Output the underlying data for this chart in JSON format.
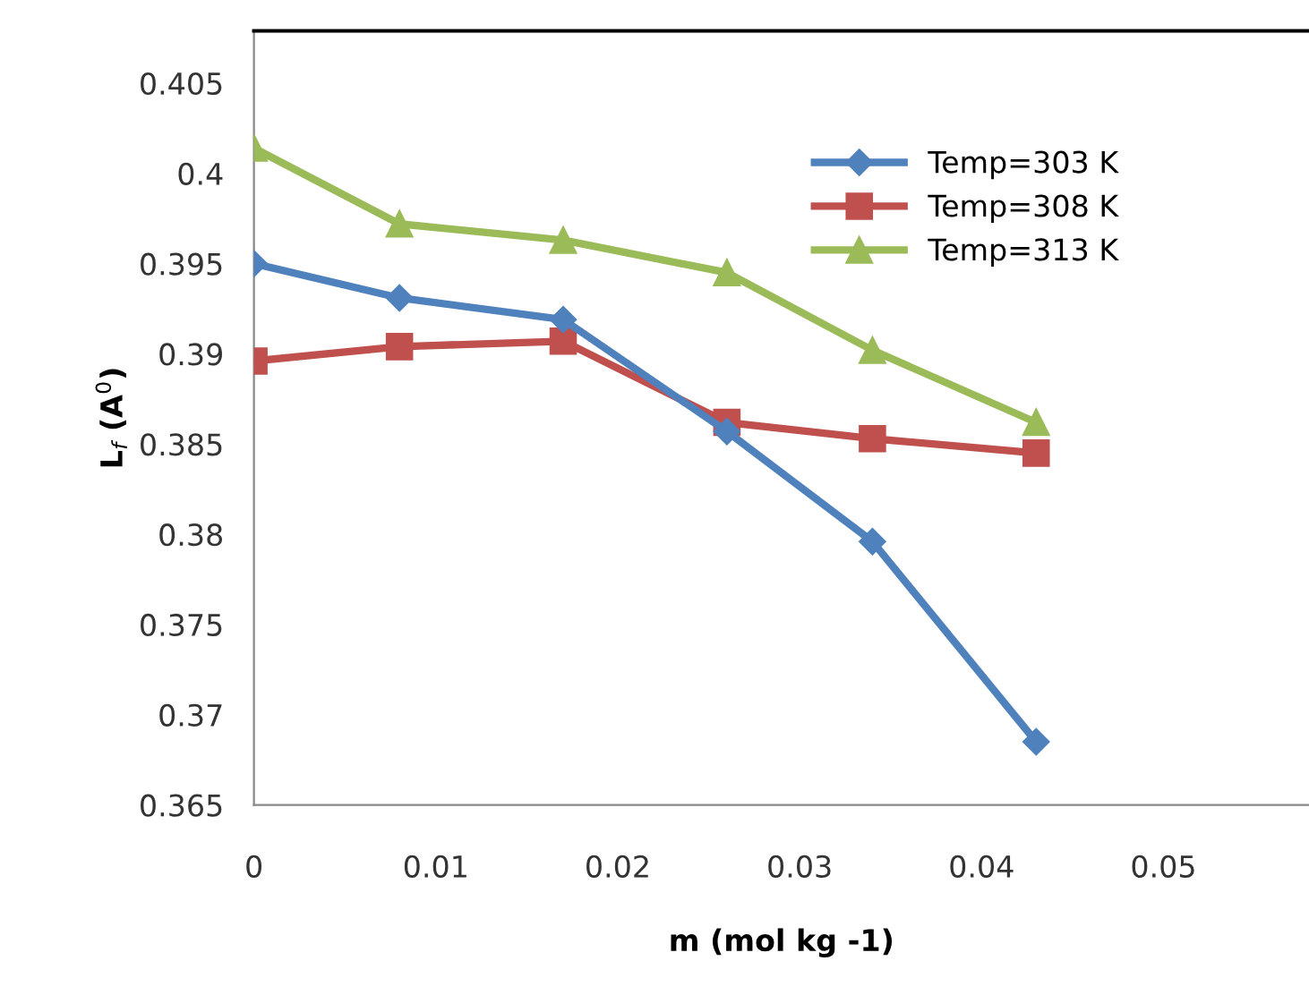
{
  "chart_data": {
    "type": "line",
    "xlabel": "m (mol kg -1)",
    "ylabel": "L$_{f}$ (A$^{0}$)",
    "x": [
      0,
      0.008,
      0.017,
      0.026,
      0.034,
      0.043
    ],
    "series": [
      {
        "name": "Temp=303 K",
        "color": "#4f81bd",
        "marker": "diamond",
        "values": [
          0.395,
          0.3931,
          0.3919,
          0.3857,
          0.3796,
          0.3685
        ]
      },
      {
        "name": "Temp=308 K",
        "color": "#c0504d",
        "marker": "square",
        "values": [
          0.3896,
          0.3904,
          0.3907,
          0.3862,
          0.3853,
          0.3845
        ]
      },
      {
        "name": "Temp=313 K",
        "color": "#9bbb59",
        "marker": "triangle",
        "values": [
          0.4014,
          0.3972,
          0.3963,
          0.3945,
          0.3902,
          0.3862
        ]
      }
    ],
    "xlim": [
      0,
      0.058
    ],
    "ylim": [
      0.365,
      0.4079
    ],
    "xticks": [
      0,
      0.01,
      0.02,
      0.03,
      0.04,
      0.05
    ],
    "yticks": [
      0.365,
      0.37,
      0.375,
      0.38,
      0.385,
      0.39,
      0.395,
      0.4,
      0.405
    ],
    "grid": false,
    "legend": "top right",
    "line_style": "solid"
  }
}
